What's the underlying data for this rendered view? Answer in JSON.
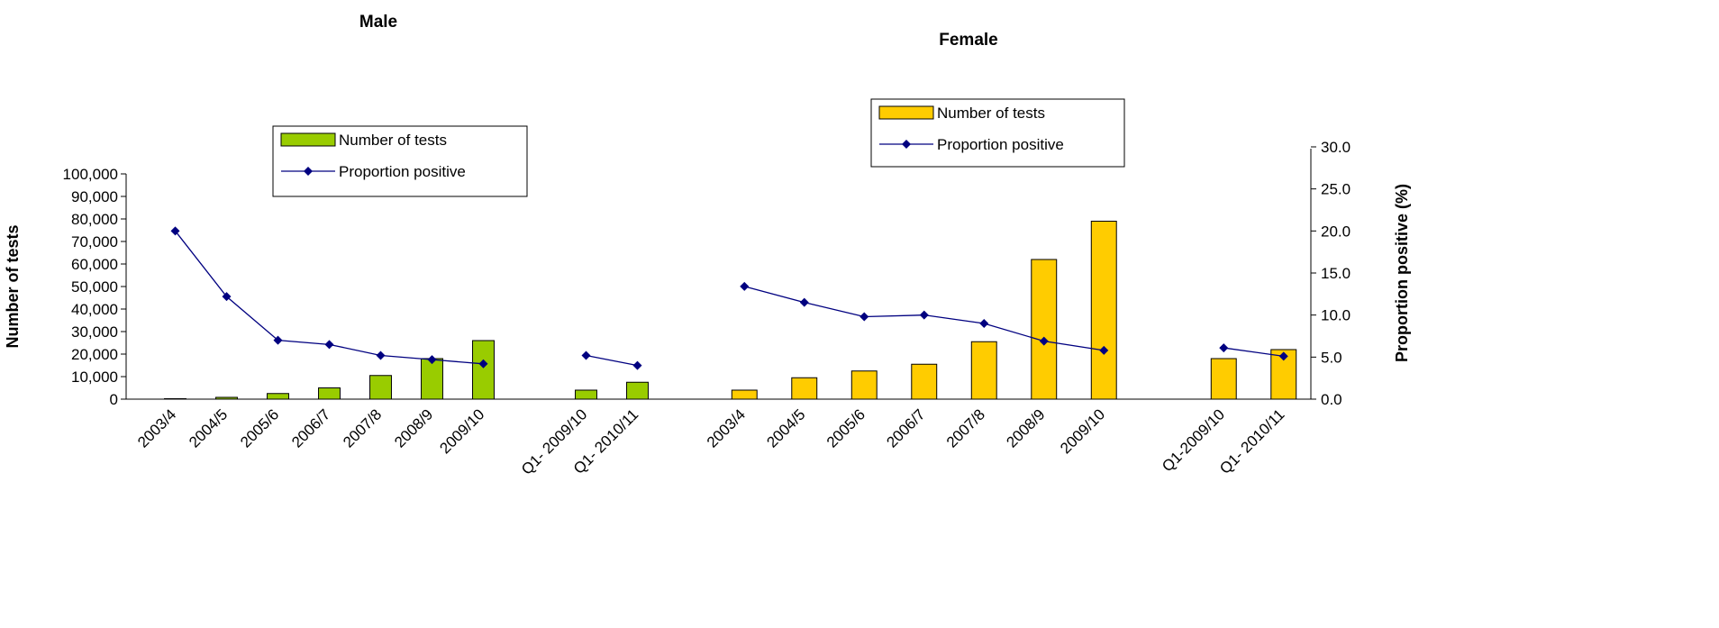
{
  "chart_data": [
    {
      "type": "bar",
      "title": "Male",
      "y_label": "Number of tests",
      "categories": [
        "2003/4",
        "2004/5",
        "2005/6",
        "2006/7",
        "2007/8",
        "2008/9",
        "2009/10",
        null,
        "Q1- 2009/10",
        "Q1- 2010/11"
      ],
      "ylim": [
        0,
        100000
      ],
      "yticks": [
        0,
        {
          "value": 10000,
          "label": "10,000"
        },
        {
          "value": 20000,
          "label": "20,000"
        },
        {
          "value": 30000,
          "label": "30,000"
        },
        {
          "value": 40000,
          "label": "40,000"
        },
        {
          "value": 50000,
          "label": "50,000"
        },
        {
          "value": 60000,
          "label": "60,000"
        },
        {
          "value": 70000,
          "label": "70,000"
        },
        {
          "value": 80000,
          "label": "80,000"
        },
        {
          "value": 90000,
          "label": "90,000"
        },
        {
          "value": 100000,
          "label": "100,000"
        }
      ],
      "y2lim": [
        0,
        30
      ],
      "series": [
        {
          "name": "Number of tests",
          "type": "bar",
          "color": "#99cc00",
          "values": [
            200,
            800,
            2500,
            5000,
            10500,
            18000,
            26000,
            null,
            4000,
            7500
          ]
        },
        {
          "name": "Proportion positive",
          "type": "line",
          "axis": "y2",
          "color": "#000080",
          "values": [
            20.0,
            12.2,
            7.0,
            6.5,
            5.2,
            4.7,
            4.2,
            null,
            5.2,
            4.0
          ]
        }
      ]
    },
    {
      "type": "bar",
      "title": "Female",
      "y2_label": "Proportion positive (%)",
      "categories": [
        "2003/4",
        "2004/5",
        "2005/6",
        "2006/7",
        "2007/8",
        "2008/9",
        "2009/10",
        null,
        "Q1-2009/10",
        "Q1- 2010/11"
      ],
      "ylim": [
        0,
        100000
      ],
      "y2lim": [
        0,
        30
      ],
      "y2ticks": [
        {
          "value": 0,
          "label": "0.0"
        },
        {
          "value": 5,
          "label": "5.0"
        },
        {
          "value": 10,
          "label": "10.0"
        },
        {
          "value": 15,
          "label": "15.0"
        },
        {
          "value": 20,
          "label": "20.0"
        },
        {
          "value": 25,
          "label": "25.0"
        },
        {
          "value": 30,
          "label": "30.0"
        }
      ],
      "series": [
        {
          "name": "Number of tests",
          "type": "bar",
          "color": "#ffcc00",
          "values": [
            4000,
            9500,
            12500,
            15500,
            25500,
            62000,
            79000,
            null,
            18000,
            22000
          ]
        },
        {
          "name": "Proportion positive",
          "type": "line",
          "axis": "y2",
          "color": "#000080",
          "values": [
            13.4,
            11.5,
            9.8,
            10.0,
            9.0,
            6.9,
            5.8,
            null,
            6.1,
            5.1
          ]
        }
      ]
    }
  ]
}
